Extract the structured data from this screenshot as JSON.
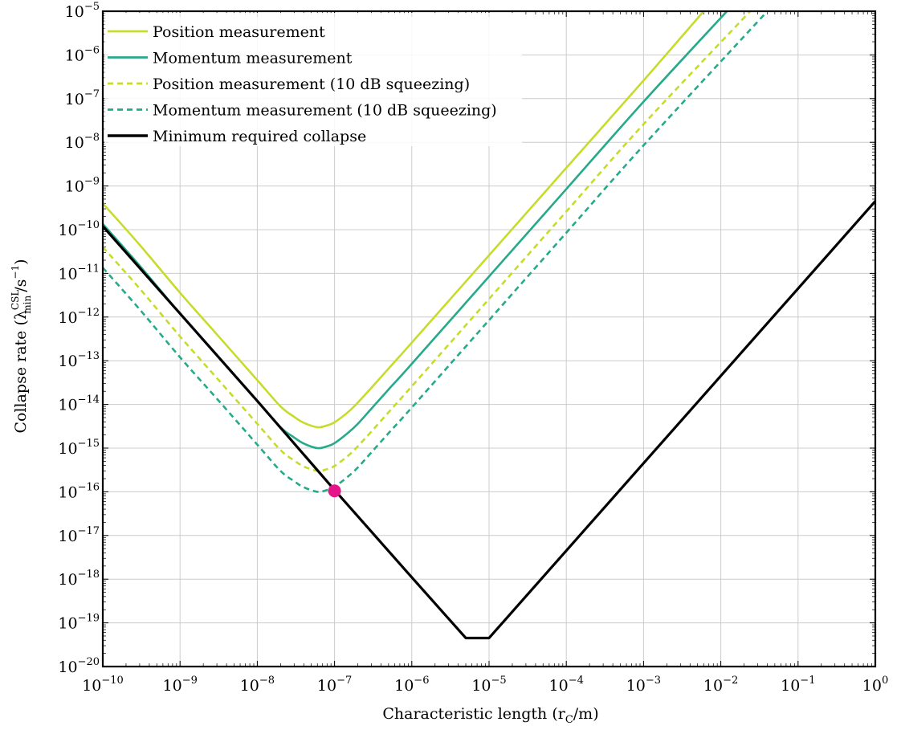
{
  "chart_data": {
    "type": "line",
    "title": "",
    "xlabel": "Characteristic length (r",
    "xlabel_sub": "C",
    "xlabel_tail": "/m)",
    "ylabel": "Collapse rate (λ",
    "ylabel_sup": "CSL",
    "ylabel_sub": "min",
    "ylabel_tail": "/s",
    "ylabel_tail_sup": "−1",
    "ylabel_close": ")",
    "xscale": "log",
    "yscale": "log",
    "xlim": [
      1e-10,
      1
    ],
    "ylim": [
      1e-20,
      1e-05
    ],
    "grid": true,
    "legend_position": "top-left",
    "x_ticks": [
      {
        "base": "10",
        "exp": "−10",
        "v": -10
      },
      {
        "base": "10",
        "exp": "−9",
        "v": -9
      },
      {
        "base": "10",
        "exp": "−8",
        "v": -8
      },
      {
        "base": "10",
        "exp": "−7",
        "v": -7
      },
      {
        "base": "10",
        "exp": "−6",
        "v": -6
      },
      {
        "base": "10",
        "exp": "−5",
        "v": -5
      },
      {
        "base": "10",
        "exp": "−4",
        "v": -4
      },
      {
        "base": "10",
        "exp": "−3",
        "v": -3
      },
      {
        "base": "10",
        "exp": "−2",
        "v": -2
      },
      {
        "base": "10",
        "exp": "−1",
        "v": -1
      },
      {
        "base": "10",
        "exp": "0",
        "v": 0
      }
    ],
    "y_ticks": [
      {
        "base": "10",
        "exp": "−5",
        "v": -5
      },
      {
        "base": "10",
        "exp": "−6",
        "v": -6
      },
      {
        "base": "10",
        "exp": "−7",
        "v": -7
      },
      {
        "base": "10",
        "exp": "−8",
        "v": -8
      },
      {
        "base": "10",
        "exp": "−9",
        "v": -9
      },
      {
        "base": "10",
        "exp": "−10",
        "v": -10
      },
      {
        "base": "10",
        "exp": "−11",
        "v": -11
      },
      {
        "base": "10",
        "exp": "−12",
        "v": -12
      },
      {
        "base": "10",
        "exp": "−13",
        "v": -13
      },
      {
        "base": "10",
        "exp": "−14",
        "v": -14
      },
      {
        "base": "10",
        "exp": "−15",
        "v": -15
      },
      {
        "base": "10",
        "exp": "−16",
        "v": -16
      },
      {
        "base": "10",
        "exp": "−17",
        "v": -17
      },
      {
        "base": "10",
        "exp": "−18",
        "v": -18
      },
      {
        "base": "10",
        "exp": "−19",
        "v": -19
      },
      {
        "base": "10",
        "exp": "−20",
        "v": -20
      }
    ],
    "series": [
      {
        "name": "Position measurement",
        "color": "#c7dc2a",
        "dash": "solid",
        "x": [
          1e-10,
          3e-10,
          1e-09,
          3e-09,
          1e-08,
          2e-08,
          3e-08,
          4e-08,
          6e-08,
          8e-08,
          1e-07,
          1.5e-07,
          2e-07,
          3e-07,
          5e-07,
          1e-06,
          1e-05,
          0.0001,
          0.001,
          0.006
        ],
        "y": [
          4e-10,
          4.5e-11,
          3.6e-12,
          4e-13,
          3.6e-14,
          9e-15,
          5.2e-15,
          3.8e-15,
          3e-15,
          3.3e-15,
          3.9e-15,
          6.7e-15,
          1.1e-14,
          2.4e-14,
          6.6e-14,
          2.6e-13,
          2.6e-11,
          2.6e-09,
          2.6e-07,
          1e-05
        ]
      },
      {
        "name": "Momentum measurement",
        "color": "#26aa8a",
        "dash": "solid",
        "x": [
          1e-10,
          3e-10,
          1e-09,
          3e-09,
          1e-08,
          2e-08,
          3e-08,
          4e-08,
          6e-08,
          8e-08,
          1e-07,
          1.5e-07,
          2e-07,
          3e-07,
          5e-07,
          1e-06,
          1e-05,
          0.0001,
          0.001,
          0.012
        ],
        "y": [
          1.35e-10,
          1.5e-11,
          1.2e-12,
          1.35e-13,
          1.2e-14,
          3e-15,
          1.75e-15,
          1.27e-15,
          1e-15,
          1.1e-15,
          1.3e-15,
          2.25e-15,
          3.6e-15,
          8e-15,
          2.2e-14,
          8.5e-14,
          8.5e-12,
          8.5e-10,
          8.5e-08,
          1e-05
        ]
      },
      {
        "name": "Position measurement (10 dB squeezing)",
        "color": "#c7dc2a",
        "dash": "dashed",
        "x": [
          1e-10,
          3e-10,
          1e-09,
          3e-09,
          1e-08,
          2e-08,
          3e-08,
          4e-08,
          6e-08,
          8e-08,
          1e-07,
          1.5e-07,
          2e-07,
          3e-07,
          5e-07,
          1e-06,
          1e-05,
          0.0001,
          0.001,
          0.024
        ],
        "y": [
          4e-11,
          4.5e-12,
          3.6e-13,
          4e-14,
          3.6e-15,
          9e-16,
          5.2e-16,
          3.8e-16,
          3e-16,
          3.3e-16,
          3.9e-16,
          6.7e-16,
          1.1e-15,
          2.4e-15,
          6.6e-15,
          2.6e-14,
          2.6e-12,
          2.6e-10,
          2.6e-08,
          1e-05
        ]
      },
      {
        "name": "Momentum measurement (10 dB squeezing)",
        "color": "#26aa8a",
        "dash": "dashed",
        "x": [
          1e-10,
          3e-10,
          1e-09,
          3e-09,
          1e-08,
          2e-08,
          3e-08,
          4e-08,
          6e-08,
          8e-08,
          1e-07,
          1.5e-07,
          2e-07,
          3e-07,
          5e-07,
          1e-06,
          1e-05,
          0.0001,
          0.001,
          0.04
        ],
        "y": [
          1.35e-11,
          1.5e-12,
          1.2e-13,
          1.35e-14,
          1.2e-15,
          3e-16,
          1.75e-16,
          1.27e-16,
          1e-16,
          1.1e-16,
          1.3e-16,
          2.25e-16,
          3.6e-16,
          8e-16,
          2.2e-15,
          8.5e-15,
          8.5e-13,
          8.5e-11,
          8.5e-09,
          1e-05
        ]
      },
      {
        "name": "Minimum required collapse",
        "color": "#000000",
        "dash": "solid",
        "x": [
          1e-10,
          1e-09,
          1e-08,
          1e-07,
          1e-06,
          5e-06,
          1e-05,
          0.0001,
          0.001,
          0.01,
          0.1,
          1
        ],
        "y": [
          1.2e-10,
          1.2e-12,
          1.2e-14,
          1.1e-16,
          1.1e-18,
          4.5e-20,
          4.5e-20,
          4.5e-18,
          4.5e-16,
          4.5e-14,
          4.5e-12,
          4.5e-10
        ]
      }
    ],
    "marker": {
      "x": 1e-07,
      "y": 1.05e-16,
      "color": "#e6148a"
    }
  }
}
